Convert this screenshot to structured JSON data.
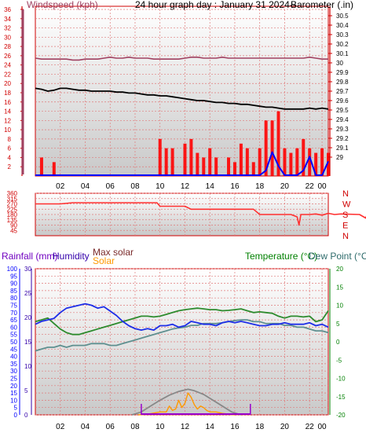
{
  "header": {
    "windspeed_label": "Windspeed (kph)",
    "title": "24 hour graph day : January 31 2024--",
    "barometer_label": "Barometer (.in)"
  },
  "colors": {
    "background": "#ffffff",
    "panel_top": "#ffffff",
    "panel_bottom": "#c9c9c9",
    "grid": "#e07a7a",
    "axis_red": "#d00000",
    "barometer_line": "#a04060",
    "temp_line": "#000000",
    "wind_bar": "#ff0000",
    "wind_avg": "#0000ff",
    "direction_line": "#ff3030",
    "rainfall_axis": "#0000ff",
    "humidity_axis": "#3300aa",
    "humidity_line": "#1e2ee8",
    "temperature_line": "#2e8b2e",
    "dewpoint_line": "#5f9090",
    "solar_line": "#ff9900",
    "max_solar_line": "#888888",
    "rain_line": "#9900cc",
    "temp_axis": "#008000",
    "dew_axis": "#2e6b6b"
  },
  "chart_data": [
    {
      "id": "wind_baro",
      "type": "line",
      "x_ticks": [
        "02",
        "04",
        "06",
        "08",
        "10",
        "12",
        "14",
        "16",
        "18",
        "20",
        "22",
        "00"
      ],
      "ylim_left": [
        0,
        36
      ],
      "yticks_left": [
        "36",
        "34",
        "32",
        "30",
        "28",
        "26",
        "24",
        "22",
        "20",
        "18",
        "16",
        "14",
        "12",
        "10",
        "8",
        "6",
        "4",
        "2"
      ],
      "ylim_right": [
        28.8,
        30.6
      ],
      "yticks_right": [
        "30.5",
        "30.4",
        "30.3",
        "30.2",
        "30.1",
        "30",
        "29.9",
        "29.8",
        "29.7",
        "29.6",
        "29.5",
        "29.4",
        "29.3",
        "29.2",
        "29.1",
        "29"
      ],
      "series": [
        {
          "key": "barometer",
          "values": [
            30.05,
            30.04,
            30.04,
            30.04,
            30.04,
            30.04,
            30.03,
            30.03,
            30.04,
            30.04,
            30.04,
            30.05,
            30.06,
            30.05,
            30.05,
            30.06,
            30.05,
            30.05,
            30.05,
            30.04,
            30.04,
            30.04,
            30.04,
            30.04,
            30.05,
            30.06,
            30.06,
            30.05,
            30.05,
            30.05,
            30.06,
            30.05,
            30.05,
            30.05,
            30.05,
            30.05,
            30.05,
            30.05,
            30.05,
            30.05,
            30.05,
            30.05,
            30.05,
            30.05,
            30.06,
            30.05,
            30.04,
            30.04
          ]
        },
        {
          "key": "temperature",
          "values": [
            29.73,
            29.72,
            29.7,
            29.71,
            29.73,
            29.73,
            29.72,
            29.71,
            29.71,
            29.7,
            29.7,
            29.7,
            29.7,
            29.69,
            29.69,
            29.68,
            29.68,
            29.67,
            29.66,
            29.66,
            29.65,
            29.65,
            29.64,
            29.63,
            29.62,
            29.61,
            29.6,
            29.6,
            29.59,
            29.58,
            29.58,
            29.57,
            29.57,
            29.56,
            29.56,
            29.55,
            29.54,
            29.53,
            29.53,
            29.52,
            29.51,
            29.51,
            29.51,
            29.51,
            29.52,
            29.51,
            29.52,
            29.51
          ]
        },
        {
          "key": "wind_gust",
          "values": [
            0,
            4,
            0,
            3,
            0,
            0,
            0,
            0,
            0,
            0,
            0,
            0,
            0,
            0,
            0,
            0,
            0,
            0,
            0,
            0,
            8,
            6,
            6,
            0,
            7,
            8,
            5,
            4,
            6,
            4,
            0,
            4,
            3,
            7,
            6,
            3,
            6,
            12,
            12,
            14,
            6,
            5,
            6,
            8,
            6,
            5,
            6,
            5
          ]
        },
        {
          "key": "wind_avg",
          "values": [
            0,
            0,
            0,
            0,
            0,
            0,
            0,
            0,
            0,
            0,
            0,
            0,
            0,
            0,
            0,
            0,
            0,
            0,
            0,
            0,
            0,
            0,
            0,
            0,
            0,
            0,
            0,
            0,
            0,
            0,
            0,
            0,
            0,
            0,
            0,
            0,
            0,
            1,
            5,
            2,
            0,
            0,
            0,
            1,
            4,
            0,
            0,
            3
          ]
        }
      ]
    },
    {
      "id": "direction",
      "type": "line",
      "x_ticks": [
        "02",
        "04",
        "06",
        "08",
        "10",
        "12",
        "14",
        "16",
        "18",
        "20",
        "22",
        "00"
      ],
      "ylim": [
        0,
        360
      ],
      "yticks": [
        "360",
        "315",
        "270",
        "225",
        "180",
        "135",
        "90",
        "45"
      ],
      "right_labels": [
        "N",
        "W",
        "S",
        "E",
        "N"
      ],
      "series": [
        {
          "key": "wind_direction",
          "points": [
            [
              0,
              270
            ],
            [
              4,
              270
            ],
            [
              6,
              280
            ],
            [
              19.5,
              280
            ],
            [
              20,
              250
            ],
            [
              24,
              250
            ],
            [
              25,
              225
            ],
            [
              35,
              225
            ],
            [
              36,
              180
            ],
            [
              41,
              180
            ],
            [
              42,
              160
            ],
            [
              42.3,
              90
            ],
            [
              42.6,
              180
            ],
            [
              44,
              180
            ],
            [
              45,
              185
            ],
            [
              46,
              175
            ],
            [
              47,
              190
            ],
            [
              48,
              180
            ],
            [
              49,
              185
            ],
            [
              52,
              180
            ],
            [
              53,
              150
            ],
            [
              53.4,
              200
            ],
            [
              54,
              220
            ],
            [
              56,
              210
            ],
            [
              56.3,
              200
            ],
            [
              58,
              200
            ]
          ]
        }
      ]
    },
    {
      "id": "temp_humidity",
      "type": "line",
      "header": {
        "rainfall": "Rainfall (mm)",
        "humidity": "Humidity",
        "max_solar": "Max solar",
        "solar": "Solar",
        "temperature": "Temperature (°C)",
        "dew_point": "Dew Point (°C)"
      },
      "x_ticks": [
        "02",
        "04",
        "06",
        "08",
        "10",
        "12",
        "14",
        "16",
        "18",
        "20",
        "22",
        "00"
      ],
      "rain_ticks": [
        "100",
        "95",
        "90",
        "85",
        "80",
        "75",
        "70",
        "65",
        "60",
        "55",
        "50",
        "45",
        "40",
        "35",
        "30",
        "25",
        "20",
        "15",
        "10",
        "5",
        "0"
      ],
      "humidity_ticks": [
        "30",
        "25",
        "20",
        "15",
        "10",
        "5",
        "0"
      ],
      "temp_ticks": [
        "20",
        "15",
        "10",
        "5",
        "0",
        "-5",
        "-10",
        "-15",
        "-20"
      ],
      "series": [
        {
          "key": "humidity",
          "values": [
            62,
            64,
            65,
            66,
            70,
            73,
            74,
            75,
            76,
            75,
            73,
            74,
            71,
            68,
            64,
            61,
            59,
            58,
            59,
            58,
            61,
            61,
            62,
            60,
            61,
            64,
            63,
            62,
            62,
            61,
            63,
            64,
            63,
            64,
            63,
            62,
            61,
            61,
            62,
            62,
            63,
            62,
            62,
            62,
            63,
            61,
            62,
            60
          ]
        },
        {
          "key": "temperature",
          "values": [
            5.5,
            6.0,
            6.5,
            5.0,
            3.5,
            2.5,
            2.0,
            2.0,
            2.5,
            3.0,
            3.5,
            4.0,
            4.5,
            5.0,
            5.5,
            6.0,
            6.5,
            7.0,
            7.0,
            6.8,
            7.0,
            7.5,
            8.0,
            8.5,
            8.8,
            9.0,
            9.2,
            9.0,
            8.8,
            8.8,
            8.5,
            8.6,
            8.8,
            9.0,
            8.5,
            8.0,
            8.2,
            8.0,
            7.8,
            7.0,
            6.5,
            7.0,
            7.0,
            6.8,
            7.0,
            5.5,
            6.0,
            8.5
          ]
        },
        {
          "key": "dew_point",
          "values": [
            -2.5,
            -2.0,
            -1.5,
            -1.5,
            -1.0,
            -1.5,
            -1.0,
            -1.0,
            -1.0,
            -0.5,
            -0.5,
            -0.5,
            -1.0,
            -1.0,
            -0.5,
            0.0,
            0.5,
            1.0,
            1.5,
            2.0,
            2.5,
            3.0,
            3.5,
            3.8,
            4.0,
            4.5,
            4.5,
            5.0,
            5.0,
            5.0,
            5.2,
            5.5,
            5.8,
            6.0,
            6.0,
            5.5,
            5.5,
            5.0,
            5.0,
            5.0,
            4.5,
            4.5,
            4.0,
            4.0,
            3.5,
            3.0,
            3.0,
            2.5
          ]
        },
        {
          "key": "solar",
          "points": [
            [
              16.5,
              0
            ],
            [
              18,
              0.5
            ],
            [
              20,
              2
            ],
            [
              21,
              2
            ],
            [
              21.5,
              6
            ],
            [
              22,
              3
            ],
            [
              22.5,
              4
            ],
            [
              23,
              10
            ],
            [
              23.5,
              5
            ],
            [
              24,
              8
            ],
            [
              24.5,
              15
            ],
            [
              25,
              12
            ],
            [
              25.5,
              7
            ],
            [
              26,
              4
            ],
            [
              26.5,
              6
            ],
            [
              27,
              5
            ],
            [
              27.5,
              3
            ],
            [
              28,
              2
            ],
            [
              29,
              2
            ],
            [
              30,
              1
            ],
            [
              31,
              0.5
            ],
            [
              32,
              0
            ]
          ]
        },
        {
          "key": "max_solar",
          "points": [
            [
              15.5,
              0
            ],
            [
              17,
              2
            ],
            [
              18.5,
              6
            ],
            [
              20,
              10
            ],
            [
              21.5,
              13.5
            ],
            [
              23,
              16
            ],
            [
              24.5,
              17.5
            ],
            [
              25.5,
              16.5
            ],
            [
              27,
              14
            ],
            [
              28.5,
              10
            ],
            [
              30,
              6
            ],
            [
              31.5,
              2
            ],
            [
              33,
              0
            ]
          ]
        },
        {
          "key": "rain_markers",
          "points": [
            [
              17,
              0
            ],
            [
              34.5,
              0
            ]
          ]
        }
      ]
    }
  ]
}
